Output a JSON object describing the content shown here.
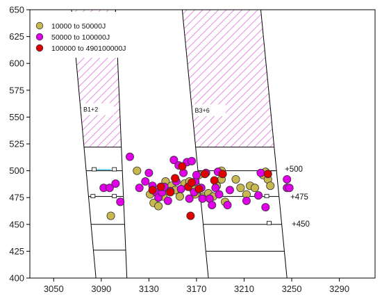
{
  "chart_data": {
    "type": "scatter",
    "xlim": [
      3030,
      3320
    ],
    "ylim": [
      400,
      650
    ],
    "xticks": [
      3050,
      3090,
      3130,
      3170,
      3210,
      3250,
      3290
    ],
    "yticks": [
      400,
      425,
      450,
      475,
      500,
      525,
      550,
      575,
      600,
      625,
      650
    ],
    "grid": false,
    "legend_position": "top-left",
    "colors": {
      "low": "#c8b850",
      "mid": "#e000e8",
      "high": "#e00000",
      "hatch": "#e070e0",
      "link": "#40c0e0"
    },
    "series": [
      {
        "name": "10000  to  50000J",
        "color_key": "low",
        "points": [
          [
            3098,
            458
          ],
          [
            3120,
            500
          ],
          [
            3131,
            478
          ],
          [
            3134,
            470
          ],
          [
            3138,
            467
          ],
          [
            3142,
            476
          ],
          [
            3144,
            490
          ],
          [
            3149,
            486
          ],
          [
            3152,
            482
          ],
          [
            3156,
            476
          ],
          [
            3160,
            488
          ],
          [
            3164,
            490
          ],
          [
            3166,
            484
          ],
          [
            3169,
            478
          ],
          [
            3172,
            496
          ],
          [
            3176,
            476
          ],
          [
            3180,
            479
          ],
          [
            3184,
            476
          ],
          [
            3187,
            486
          ],
          [
            3191,
            500
          ],
          [
            3191,
            492
          ],
          [
            3194,
            471
          ],
          [
            3203,
            492
          ],
          [
            3207,
            484
          ],
          [
            3212,
            478
          ],
          [
            3215,
            486
          ],
          [
            3219,
            484
          ],
          [
            3226,
            496
          ],
          [
            3228,
            499
          ],
          [
            3230,
            492
          ],
          [
            3232,
            486
          ]
        ]
      },
      {
        "name": "50000  to  100000J",
        "color_key": "mid",
        "points": [
          [
            3092,
            484
          ],
          [
            3097,
            484
          ],
          [
            3102,
            488
          ],
          [
            3106,
            471
          ],
          [
            3114,
            513
          ],
          [
            3122,
            484
          ],
          [
            3127,
            490
          ],
          [
            3130,
            498
          ],
          [
            3133,
            486
          ],
          [
            3136,
            480
          ],
          [
            3138,
            475
          ],
          [
            3141,
            480
          ],
          [
            3143,
            485
          ],
          [
            3146,
            472
          ],
          [
            3148,
            481
          ],
          [
            3151,
            510
          ],
          [
            3153,
            490
          ],
          [
            3155,
            505
          ],
          [
            3157,
            483
          ],
          [
            3159,
            498
          ],
          [
            3162,
            508
          ],
          [
            3164,
            474
          ],
          [
            3166,
            509
          ],
          [
            3168,
            480
          ],
          [
            3169,
            490
          ],
          [
            3170,
            496
          ],
          [
            3174,
            484
          ],
          [
            3175,
            474
          ],
          [
            3178,
            498
          ],
          [
            3181,
            474
          ],
          [
            3183,
            468
          ],
          [
            3186,
            484
          ],
          [
            3188,
            499
          ],
          [
            3189,
            478
          ],
          [
            3196,
            468
          ],
          [
            3198,
            482
          ],
          [
            3212,
            472
          ],
          [
            3222,
            477
          ],
          [
            3224,
            498
          ],
          [
            3228,
            466
          ],
          [
            3246,
            492
          ],
          [
            3246,
            484
          ],
          [
            3248,
            484
          ]
        ]
      },
      {
        "name": "100000  to  490100000J",
        "color_key": "high",
        "points": [
          [
            3133,
            482
          ],
          [
            3140,
            485
          ],
          [
            3148,
            480
          ],
          [
            3152,
            493
          ],
          [
            3158,
            504
          ],
          [
            3163,
            485
          ],
          [
            3165,
            458
          ],
          [
            3166,
            489
          ],
          [
            3172,
            483
          ],
          [
            3177,
            497
          ],
          [
            3185,
            491
          ],
          [
            3192,
            497
          ],
          [
            3230,
            497
          ]
        ]
      }
    ],
    "zones": [
      {
        "label": "B1+2"
      },
      {
        "label": "B3+6"
      }
    ],
    "annotations": [
      "+500",
      "+475",
      "+450"
    ]
  }
}
